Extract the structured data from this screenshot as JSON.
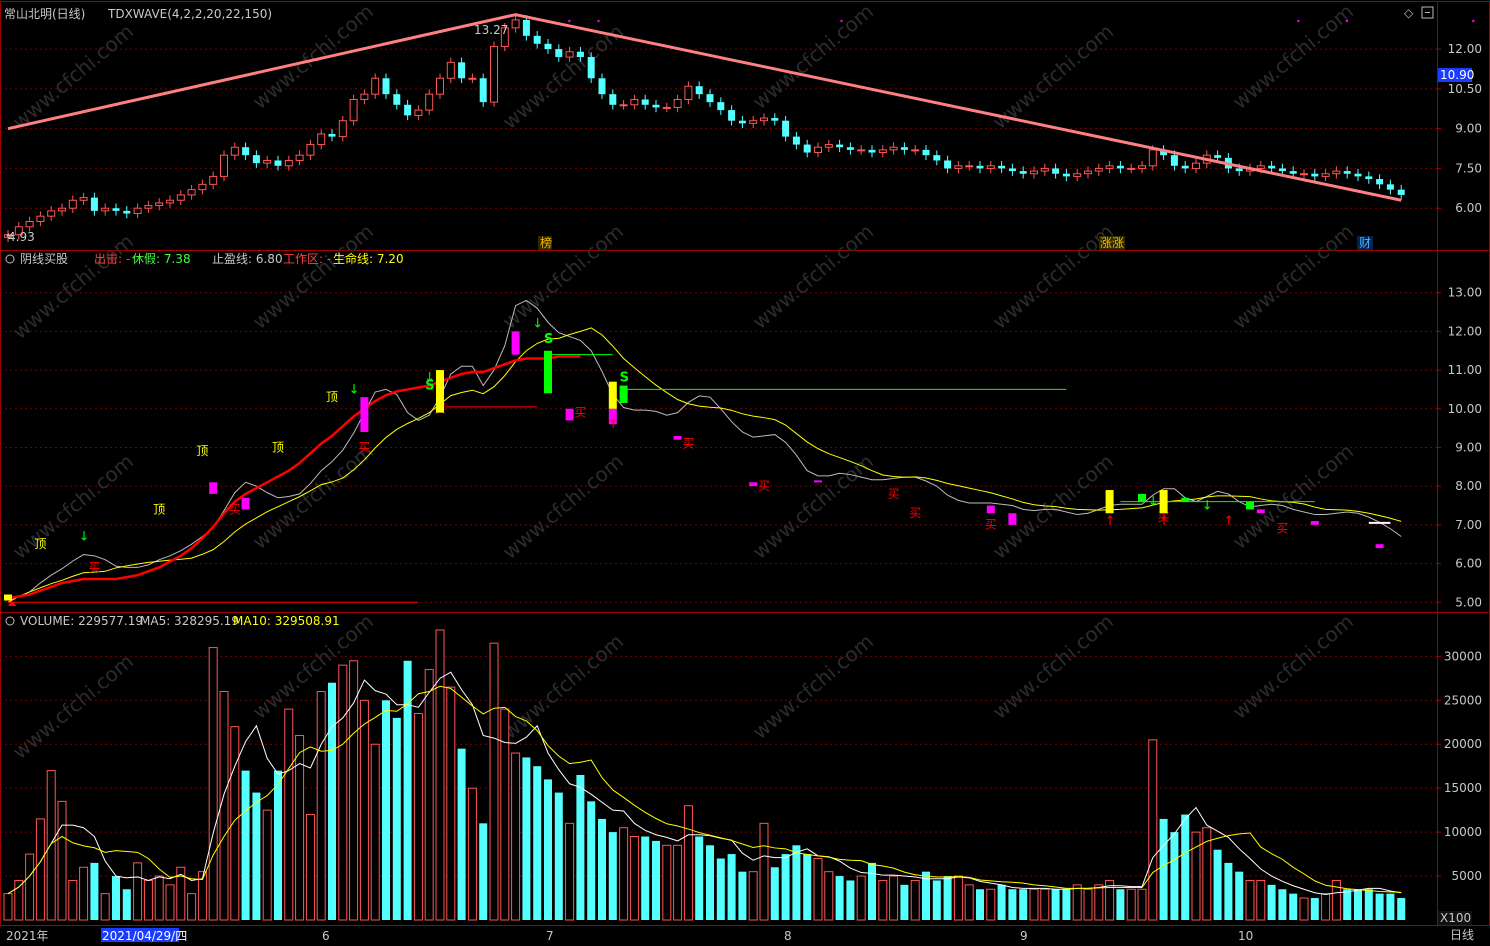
{
  "colors": {
    "up": "#ff5555",
    "down": "#54ffff",
    "grid": "#7a0000",
    "axis_text": "#c8c8c8",
    "trend": "#ff8080",
    "yellow": "#ffff00",
    "red": "#ff0000",
    "green": "#00ff00",
    "magenta": "#ff00ff",
    "white": "#ffffff"
  },
  "top_panel": {
    "stock_name": "常山北明(日线)",
    "indicator": "TDXWAVE(4,2,2,20,22,150)",
    "price_badge": "10.90",
    "high_label": "13.27",
    "low_label": "4.93",
    "event_tags": [
      "榜",
      "涨涨",
      "财"
    ],
    "y_ticks": [
      "12.00",
      "10.50",
      "9.00",
      "7.50",
      "6.00"
    ]
  },
  "mid_panel": {
    "title": "阴线买股",
    "l1": "出击: -",
    "l2": "休假: 7.38",
    "l3": "止盈线: 6.80",
    "l4": "工作区: -",
    "l5": "生命线: 7.20",
    "y_ticks": [
      "13.00",
      "12.00",
      "11.00",
      "10.00",
      "9.00",
      "8.00",
      "7.00",
      "6.00",
      "5.00"
    ],
    "tag_top": "顶",
    "tag_buy": "买",
    "tag_sell": "S"
  },
  "vol_panel": {
    "title": "VOLUME: 229577.19",
    "ma5": "MA5: 328295.19",
    "ma10": "MA10: 329508.91",
    "y_ticks": [
      "30000",
      "25000",
      "20000",
      "15000",
      "10000",
      "5000"
    ],
    "unit": "X100"
  },
  "x_axis": {
    "labels": [
      "2021年",
      "2021/04/29/四",
      "6",
      "7",
      "8",
      "9",
      "10"
    ],
    "period": "日线"
  },
  "watermark": "www.cfchi.com",
  "chart_data": {
    "type": "candlestick",
    "price_range": [
      4.5,
      13.7
    ],
    "osc_range": [
      4.8,
      14.0
    ],
    "volume_range": [
      0,
      33000
    ],
    "close": [
      5.0,
      5.3,
      5.5,
      5.7,
      5.9,
      6.0,
      6.3,
      6.4,
      5.9,
      6.0,
      5.9,
      5.8,
      6.0,
      6.1,
      6.2,
      6.3,
      6.5,
      6.7,
      6.9,
      7.2,
      8.0,
      8.3,
      8.0,
      7.7,
      7.8,
      7.6,
      7.8,
      8.0,
      8.4,
      8.8,
      8.7,
      9.3,
      10.1,
      10.3,
      10.9,
      10.3,
      9.9,
      9.5,
      9.7,
      10.3,
      10.9,
      11.5,
      10.9,
      10.9,
      10.0,
      12.1,
      12.8,
      13.1,
      12.5,
      12.2,
      12.0,
      11.7,
      11.9,
      11.7,
      10.9,
      10.3,
      9.9,
      9.9,
      10.1,
      9.9,
      9.8,
      9.8,
      10.1,
      10.6,
      10.3,
      10.0,
      9.7,
      9.3,
      9.2,
      9.3,
      9.4,
      9.3,
      8.7,
      8.4,
      8.1,
      8.3,
      8.4,
      8.3,
      8.2,
      8.2,
      8.1,
      8.2,
      8.3,
      8.2,
      8.2,
      8.0,
      7.8,
      7.5,
      7.6,
      7.6,
      7.5,
      7.6,
      7.5,
      7.4,
      7.3,
      7.4,
      7.5,
      7.3,
      7.2,
      7.3,
      7.4,
      7.5,
      7.6,
      7.5,
      7.5,
      7.6,
      8.2,
      8.0,
      7.6,
      7.5,
      7.7,
      8.0,
      7.9,
      7.5,
      7.4,
      7.5,
      7.6,
      7.5,
      7.4,
      7.3,
      7.3,
      7.2,
      7.3,
      7.4,
      7.3,
      7.2,
      7.1,
      6.9,
      6.7,
      6.5
    ],
    "volume": [
      3000,
      4500,
      7500,
      11500,
      17000,
      13500,
      4500,
      6000,
      6500,
      3000,
      5000,
      3500,
      6500,
      4500,
      5000,
      4000,
      6000,
      3000,
      5500,
      31000,
      26000,
      22000,
      17000,
      14500,
      12500,
      17000,
      24000,
      21000,
      12000,
      26000,
      27000,
      29000,
      29500,
      25000,
      20000,
      25000,
      23000,
      29500,
      23500,
      28500,
      33000,
      26500,
      19500,
      15000,
      11000,
      31500,
      24000,
      19000,
      18500,
      17500,
      16000,
      14500,
      11000,
      16500,
      13500,
      11500,
      10000,
      10500,
      9500,
      9500,
      9000,
      8500,
      8500,
      13000,
      9500,
      8500,
      7000,
      7500,
      5500,
      5500,
      11000,
      6000,
      7500,
      8500,
      7500,
      7000,
      5500,
      5000,
      4500,
      5000,
      6500,
      4500,
      5000,
      4000,
      4500,
      5500,
      4500,
      5000,
      5000,
      4000,
      3500,
      3500,
      4000,
      3500,
      3500,
      3500,
      3500,
      3500,
      3500,
      4000,
      3500,
      4000,
      4500,
      3500,
      3500,
      3500,
      20500,
      11500,
      10000,
      12000,
      10000,
      10500,
      8000,
      6500,
      5500,
      4500,
      4500,
      4000,
      3500,
      3000,
      2500,
      2500,
      3000,
      4500,
      3500,
      3500,
      3500,
      3000,
      3000,
      2500
    ],
    "trend_line": [
      [
        0,
        9.0
      ],
      [
        47,
        13.3
      ],
      [
        129,
        6.3
      ]
    ],
    "osc_red": [
      5.1,
      5.15,
      5.2,
      5.3,
      5.4,
      5.5,
      5.55,
      5.6,
      5.6,
      5.6,
      5.6,
      5.65,
      5.7,
      5.8,
      5.9,
      6.05,
      6.2,
      6.4,
      6.65,
      6.95,
      7.3,
      7.6,
      7.8,
      7.95,
      8.1,
      8.25,
      8.4,
      8.6,
      8.85,
      9.1,
      9.3,
      9.55,
      9.8,
      10.0,
      10.2,
      10.35,
      10.45,
      10.5,
      10.55,
      10.6,
      10.7,
      10.8,
      10.9,
      10.95,
      10.95,
      11.05,
      11.15,
      11.25,
      11.3,
      11.3,
      11.3,
      11.35,
      11.35,
      11.35
    ]
  }
}
